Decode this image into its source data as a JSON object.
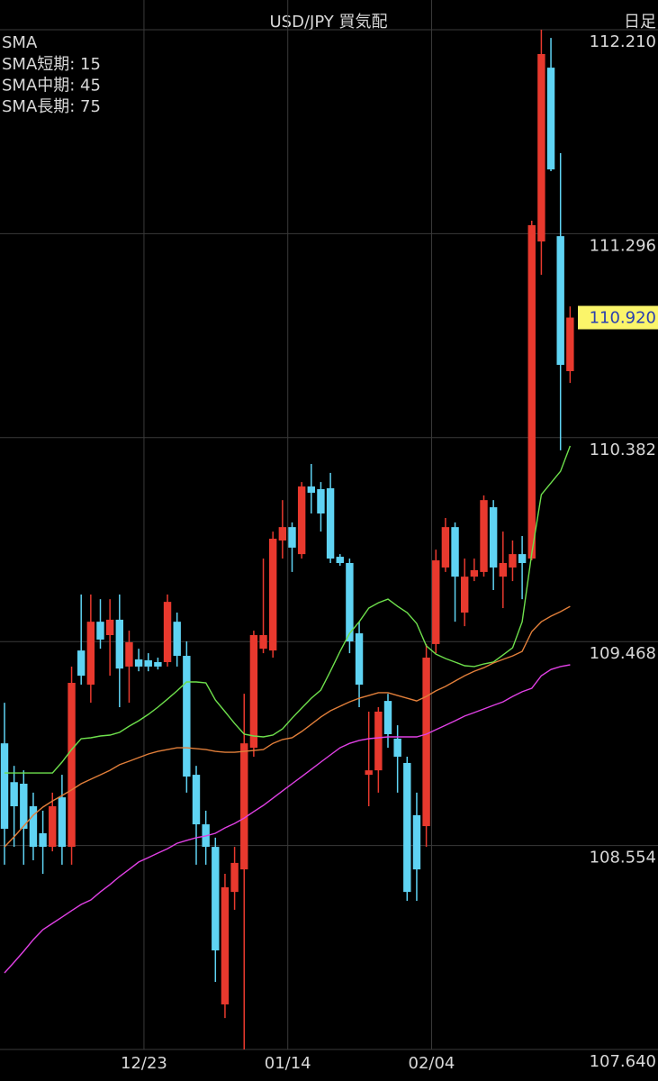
{
  "chart_data": {
    "type": "candlestick",
    "title": "USD/JPY 買気配",
    "timeframe": "日足",
    "legend_title": "SMA",
    "categories": [
      null,
      null,
      null,
      null,
      null,
      null,
      null,
      null,
      null,
      null,
      null,
      null,
      null,
      null,
      null,
      "12/23",
      null,
      null,
      null,
      null,
      null,
      null,
      null,
      null,
      null,
      null,
      null,
      null,
      null,
      null,
      "01/14",
      null,
      null,
      null,
      null,
      null,
      null,
      null,
      null,
      null,
      null,
      null,
      null,
      null,
      null,
      "02/04",
      null,
      null,
      null,
      null,
      null,
      null,
      null,
      null,
      null,
      null,
      null,
      null,
      null,
      null
    ],
    "up_color": "#e8392e",
    "down_color": "#5fd3f3",
    "open": [
      109.012,
      108.838,
      108.831,
      108.73,
      108.609,
      108.548,
      108.77,
      108.548,
      109.428,
      109.275,
      109.557,
      109.497,
      109.566,
      109.356,
      109.388,
      109.384,
      109.376,
      109.376,
      109.557,
      109.404,
      108.871,
      108.649,
      108.548,
      107.842,
      108.346,
      108.447,
      108.992,
      109.436,
      109.428,
      109.921,
      109.981,
      109.86,
      110.163,
      110.151,
      110.155,
      109.848,
      109.82,
      109.505,
      108.871,
      108.891,
      109.202,
      109.033,
      108.924,
      108.69,
      108.641,
      109.457,
      109.8,
      109.981,
      109.598,
      109.759,
      109.78,
      110.07,
      109.759,
      109.8,
      109.86,
      109.84,
      111.261,
      112.04,
      111.285,
      110.68
    ],
    "high": [
      109.194,
      108.911,
      108.891,
      108.791,
      108.71,
      108.791,
      108.871,
      109.356,
      109.679,
      109.679,
      109.658,
      109.658,
      109.679,
      109.517,
      109.436,
      109.416,
      109.396,
      109.679,
      109.598,
      109.469,
      108.911,
      108.71,
      108.589,
      108.427,
      108.548,
      109.234,
      109.517,
      109.84,
      109.961,
      110.102,
      110.002,
      110.183,
      110.264,
      110.183,
      110.224,
      109.86,
      109.84,
      109.557,
      109.154,
      109.174,
      109.234,
      109.093,
      108.952,
      108.791,
      109.457,
      109.88,
      110.022,
      110.002,
      109.84,
      109.84,
      110.123,
      110.102,
      109.961,
      109.921,
      109.941,
      111.354,
      112.21,
      112.173,
      111.657,
      110.97
    ],
    "low": [
      108.468,
      108.548,
      108.468,
      108.488,
      108.427,
      108.528,
      108.468,
      108.468,
      109.275,
      109.194,
      109.436,
      109.315,
      109.174,
      109.194,
      109.335,
      109.335,
      109.343,
      109.356,
      109.356,
      108.791,
      108.468,
      108.468,
      107.943,
      107.781,
      108.266,
      107.64,
      108.952,
      109.416,
      109.396,
      109.84,
      109.78,
      109.84,
      110.042,
      109.961,
      109.82,
      109.808,
      109.416,
      109.174,
      108.73,
      108.791,
      108.992,
      108.791,
      108.306,
      108.306,
      108.548,
      109.416,
      109.78,
      109.557,
      109.537,
      109.739,
      109.759,
      109.699,
      109.618,
      109.739,
      109.658,
      109.832,
      111.112,
      111.576,
      110.325,
      110.627
    ],
    "close": [
      108.629,
      108.73,
      108.629,
      108.548,
      108.548,
      108.73,
      108.548,
      109.283,
      109.315,
      109.557,
      109.477,
      109.566,
      109.347,
      109.465,
      109.356,
      109.356,
      109.356,
      109.646,
      109.404,
      108.863,
      108.649,
      108.548,
      108.084,
      108.367,
      108.476,
      109.012,
      109.497,
      109.497,
      109.929,
      109.981,
      109.889,
      110.163,
      110.135,
      110.042,
      109.84,
      109.82,
      109.469,
      109.275,
      108.891,
      109.154,
      109.053,
      108.952,
      108.346,
      108.447,
      109.396,
      109.832,
      109.981,
      109.759,
      109.759,
      109.788,
      110.102,
      109.8,
      109.82,
      109.86,
      109.82,
      111.334,
      112.101,
      111.584,
      110.708,
      110.92
    ],
    "series": [
      {
        "name": "SMA短期: 15",
        "color": "#6ee04c",
        "values": [
          108.879,
          108.879,
          108.879,
          108.879,
          108.879,
          108.879,
          108.928,
          108.984,
          109.033,
          109.037,
          109.045,
          109.049,
          109.061,
          109.089,
          109.113,
          109.142,
          109.174,
          109.21,
          109.247,
          109.287,
          109.287,
          109.283,
          109.206,
          109.154,
          109.101,
          109.053,
          109.045,
          109.041,
          109.049,
          109.077,
          109.125,
          109.17,
          109.214,
          109.251,
          109.335,
          109.424,
          109.505,
          109.557,
          109.618,
          109.642,
          109.658,
          109.626,
          109.598,
          109.549,
          109.449,
          109.412,
          109.392,
          109.376,
          109.36,
          109.356,
          109.368,
          109.376,
          109.408,
          109.44,
          109.557,
          109.864,
          110.127,
          110.179,
          110.231,
          110.345
        ]
      },
      {
        "name": "SMA中期: 45",
        "color": "#e27f3a",
        "values": [
          108.548,
          108.593,
          108.641,
          108.69,
          108.726,
          108.754,
          108.778,
          108.803,
          108.831,
          108.851,
          108.871,
          108.891,
          108.916,
          108.932,
          108.948,
          108.964,
          108.976,
          108.984,
          108.992,
          108.992,
          108.988,
          108.984,
          108.976,
          108.972,
          108.972,
          108.976,
          108.98,
          108.984,
          109.012,
          109.029,
          109.037,
          109.065,
          109.097,
          109.13,
          109.158,
          109.178,
          109.198,
          109.214,
          109.226,
          109.239,
          109.239,
          109.226,
          109.214,
          109.202,
          109.222,
          109.247,
          109.267,
          109.291,
          109.315,
          109.335,
          109.351,
          109.372,
          109.388,
          109.404,
          109.424,
          109.513,
          109.557,
          109.582,
          109.602,
          109.626
        ]
      },
      {
        "name": "SMA長期: 75",
        "color": "#e040e4",
        "values": [
          107.983,
          108.031,
          108.08,
          108.132,
          108.177,
          108.205,
          108.233,
          108.262,
          108.29,
          108.31,
          108.346,
          108.379,
          108.415,
          108.447,
          108.48,
          108.5,
          108.52,
          108.54,
          108.564,
          108.577,
          108.589,
          108.597,
          108.609,
          108.633,
          108.653,
          108.677,
          108.706,
          108.734,
          108.766,
          108.799,
          108.831,
          108.863,
          108.895,
          108.928,
          108.96,
          108.992,
          109.012,
          109.025,
          109.033,
          109.037,
          109.041,
          109.041,
          109.041,
          109.041,
          109.053,
          109.073,
          109.093,
          109.113,
          109.134,
          109.15,
          109.166,
          109.182,
          109.198,
          109.222,
          109.243,
          109.259,
          109.315,
          109.343,
          109.356,
          109.364
        ]
      }
    ],
    "ylim": [
      107.64,
      112.21
    ],
    "yticks": [
      {
        "value": 107.64,
        "label": "107.640"
      },
      108.554,
      109.468,
      110.382,
      111.296,
      {
        "value": 112.21,
        "label": "112.210"
      }
    ],
    "last_price": {
      "value": 110.92,
      "label": "110.920"
    },
    "grid": true
  }
}
